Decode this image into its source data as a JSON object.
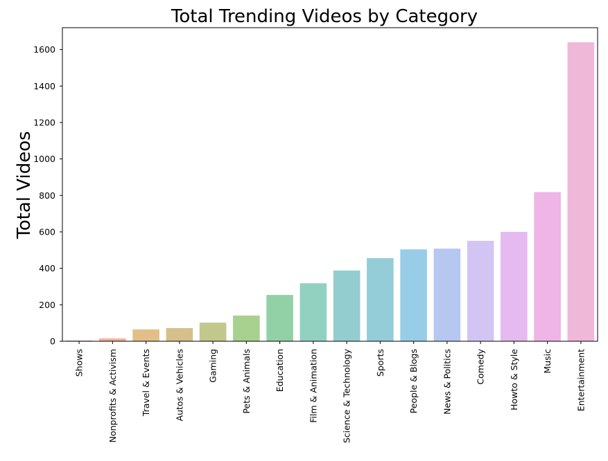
{
  "chart_data": {
    "type": "bar",
    "title": "Total Trending Videos by Category",
    "xlabel": "",
    "ylabel": "Total Videos",
    "ylim": [
      0,
      1720
    ],
    "yticks": [
      0,
      200,
      400,
      600,
      800,
      1000,
      1200,
      1400,
      1600
    ],
    "categories": [
      "Shows",
      "Nonprofits & Activism",
      "Travel & Events",
      "Autos & Vehicles",
      "Gaming",
      "Pets & Animals",
      "Education",
      "Film & Animation",
      "Science & Technology",
      "Sports",
      "People & Blogs",
      "News & Politics",
      "Comedy",
      "Howto & Style",
      "Music",
      "Entertainment"
    ],
    "values": [
      4,
      16,
      65,
      72,
      102,
      141,
      254,
      318,
      388,
      456,
      504,
      508,
      551,
      600,
      818,
      1640
    ],
    "colors": [
      "#f0a3a0",
      "#f5b398",
      "#e3bf87",
      "#d6c08a",
      "#c2c88c",
      "#a8d08e",
      "#92d1a5",
      "#92d0c0",
      "#94cdd0",
      "#94cdd8",
      "#98cde8",
      "#b7c8f0",
      "#d3c5f3",
      "#e4baf0",
      "#eeb5e6",
      "#f0b8d8"
    ],
    "grid": false,
    "legend": "none"
  }
}
